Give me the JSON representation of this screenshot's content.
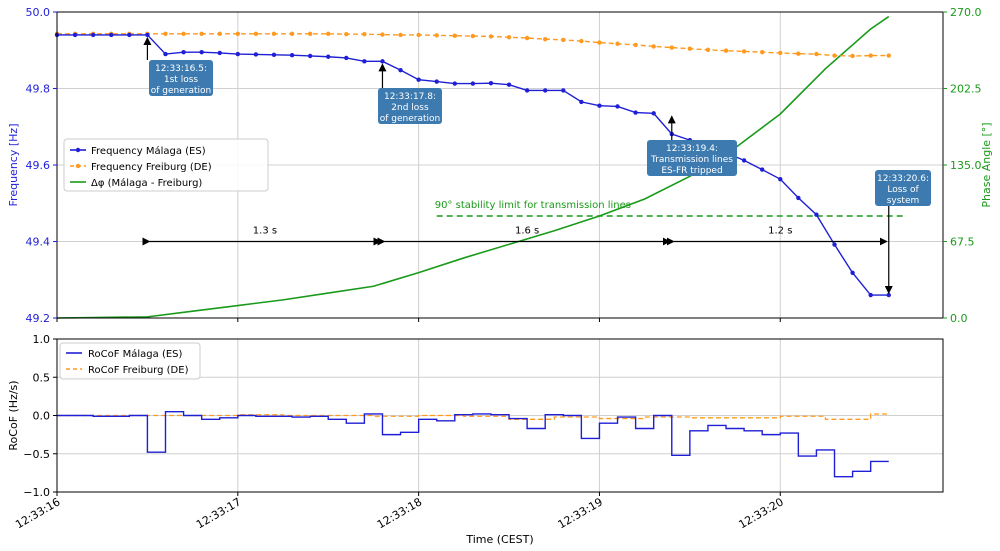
{
  "chart_data": [
    {
      "type": "line",
      "title": "",
      "xlabel": "",
      "ylabel": "Frequency [Hz]",
      "y2label": "Phase Angle [°]",
      "xlim": [
        0.0,
        4.9
      ],
      "ylim": [
        49.2,
        50.0
      ],
      "y2lim": [
        0.0,
        270.0
      ],
      "yticks": [
        "49.2",
        "49.4",
        "49.6",
        "49.8",
        "50.0"
      ],
      "y2ticks": [
        "0.0",
        "67.5",
        "135.0",
        "202.5",
        "270.0"
      ],
      "grid": true,
      "legend_position": "center-left",
      "colors": {
        "malaga": "#1f1fd6",
        "freiburg": "#ff9a1f",
        "phase": "#1a9a1a",
        "annotation_box": "#3c7ab0"
      },
      "series": [
        {
          "name": "Frequency Málaga (ES)",
          "axis": "left",
          "color": "#1f1fd6",
          "marker": "dot",
          "x": [
            0.0,
            0.1,
            0.2,
            0.3,
            0.4,
            0.5,
            0.6,
            0.7,
            0.8,
            0.9,
            1.0,
            1.1,
            1.2,
            1.3,
            1.4,
            1.5,
            1.6,
            1.7,
            1.8,
            1.9,
            2.0,
            2.1,
            2.2,
            2.3,
            2.4,
            2.5,
            2.6,
            2.7,
            2.8,
            2.9,
            3.0,
            3.1,
            3.2,
            3.3,
            3.4,
            3.5,
            3.6,
            3.7,
            3.8,
            3.9,
            4.0,
            4.1,
            4.2,
            4.3,
            4.4,
            4.5,
            4.6
          ],
          "y": [
            49.94,
            49.94,
            49.94,
            49.94,
            49.94,
            49.94,
            49.89,
            49.895,
            49.895,
            49.893,
            49.89,
            49.889,
            49.888,
            49.887,
            49.885,
            49.883,
            49.88,
            49.871,
            49.871,
            49.848,
            49.823,
            49.818,
            49.813,
            49.813,
            49.814,
            49.81,
            49.795,
            49.795,
            49.795,
            49.765,
            49.755,
            49.753,
            49.737,
            49.735,
            49.681,
            49.665,
            49.65,
            49.632,
            49.612,
            49.588,
            49.563,
            49.514,
            49.47,
            49.392,
            49.318,
            49.26,
            49.26
          ]
        },
        {
          "name": "Frequency Freiburg (DE)",
          "axis": "left",
          "color": "#ff9a1f",
          "marker": "dot",
          "dashed": true,
          "x": [
            0.0,
            0.1,
            0.2,
            0.3,
            0.4,
            0.5,
            0.6,
            0.7,
            0.8,
            0.9,
            1.0,
            1.1,
            1.2,
            1.3,
            1.4,
            1.5,
            1.6,
            1.7,
            1.8,
            1.9,
            2.0,
            2.1,
            2.2,
            2.3,
            2.4,
            2.5,
            2.6,
            2.7,
            2.8,
            2.9,
            3.0,
            3.1,
            3.2,
            3.3,
            3.4,
            3.5,
            3.6,
            3.7,
            3.8,
            3.9,
            4.0,
            4.1,
            4.2,
            4.3,
            4.4,
            4.5,
            4.6
          ],
          "y": [
            49.943,
            49.943,
            49.943,
            49.943,
            49.943,
            49.943,
            49.943,
            49.943,
            49.943,
            49.943,
            49.943,
            49.943,
            49.943,
            49.943,
            49.943,
            49.943,
            49.942,
            49.942,
            49.941,
            49.94,
            49.94,
            49.939,
            49.938,
            49.937,
            49.936,
            49.934,
            49.932,
            49.929,
            49.927,
            49.924,
            49.92,
            49.917,
            49.914,
            49.91,
            49.907,
            49.904,
            49.901,
            49.899,
            49.897,
            49.895,
            49.893,
            49.891,
            49.89,
            49.886,
            49.885,
            49.886,
            49.886
          ]
        },
        {
          "name": "Δφ (Málaga - Freiburg)",
          "axis": "right",
          "color": "#1a9a1a",
          "x": [
            0.0,
            0.25,
            0.5,
            0.75,
            1.0,
            1.25,
            1.5,
            1.75,
            2.0,
            2.25,
            2.5,
            2.75,
            3.0,
            3.25,
            3.5,
            3.75,
            4.0,
            4.25,
            4.5,
            4.6
          ],
          "y": [
            0,
            0.5,
            1,
            6,
            11,
            16,
            22,
            28,
            40,
            53,
            65,
            77,
            90,
            105,
            125,
            150,
            180,
            220,
            255,
            266
          ]
        }
      ],
      "annotations": [
        {
          "line1": "12:33:16.5:",
          "line2": "1st loss",
          "line3": "of generation",
          "x": 0.5,
          "y": 49.94
        },
        {
          "line1": "12:33:17.8:",
          "line2": "2nd loss",
          "line3": "of generation",
          "x": 1.8,
          "y": 49.871
        },
        {
          "line1": "12:33:19.4:",
          "line2": "Transmission lines",
          "line3": "ES-FR tripped",
          "x": 3.4,
          "y": 49.735
        },
        {
          "line1": "12:33:20.6:",
          "line2": "Loss of",
          "line3": "system",
          "x": 4.6,
          "y": 49.26
        }
      ],
      "intervals": [
        {
          "label": "1.3 s",
          "x_start": 0.5,
          "x_end": 1.8,
          "y": 49.4
        },
        {
          "label": "1.6 s",
          "x_start": 1.8,
          "x_end": 3.4,
          "y": 49.4
        },
        {
          "label": "1.2 s",
          "x_start": 3.4,
          "x_end": 4.6,
          "y": 49.4
        }
      ],
      "stability_limit": {
        "label": "90° stability limit for transmission lines",
        "value": 90,
        "x_start": 2.1,
        "x_end": 4.7
      }
    },
    {
      "type": "line",
      "title": "",
      "xlabel": "Time (CEST)",
      "ylabel": "RoCoF (Hz/s)",
      "xlim": [
        0.0,
        4.9
      ],
      "ylim": [
        -1.0,
        1.0
      ],
      "yticks": [
        "−1.0",
        "−0.5",
        "0.0",
        "0.5",
        "1.0"
      ],
      "xtick_values": [
        0.0,
        1.0,
        2.0,
        3.0,
        4.0
      ],
      "xticks": [
        "12:33:16",
        "12:33:17",
        "12:33:18",
        "12:33:19",
        "12:33:20"
      ],
      "grid": true,
      "legend_position": "top-left",
      "series": [
        {
          "name": "RoCoF Málaga (ES)",
          "color": "#1f1fd6",
          "step": true,
          "x": [
            0.0,
            0.1,
            0.2,
            0.3,
            0.4,
            0.5,
            0.6,
            0.7,
            0.8,
            0.9,
            1.0,
            1.1,
            1.2,
            1.3,
            1.4,
            1.5,
            1.6,
            1.7,
            1.8,
            1.9,
            2.0,
            2.1,
            2.2,
            2.3,
            2.4,
            2.5,
            2.6,
            2.7,
            2.8,
            2.9,
            3.0,
            3.1,
            3.2,
            3.3,
            3.4,
            3.5,
            3.6,
            3.7,
            3.8,
            3.9,
            4.0,
            4.1,
            4.2,
            4.3,
            4.4,
            4.5,
            4.6
          ],
          "y": [
            0.0,
            0.0,
            -0.01,
            -0.01,
            0.0,
            -0.48,
            0.05,
            0.0,
            -0.05,
            -0.03,
            0.0,
            -0.01,
            -0.01,
            -0.02,
            -0.01,
            -0.05,
            -0.1,
            0.02,
            -0.25,
            -0.22,
            -0.05,
            -0.07,
            0.01,
            0.02,
            0.01,
            -0.04,
            -0.17,
            0.01,
            0.0,
            -0.3,
            -0.1,
            -0.02,
            -0.17,
            0.0,
            -0.52,
            -0.2,
            -0.13,
            -0.17,
            -0.2,
            -0.25,
            -0.23,
            -0.53,
            -0.45,
            -0.8,
            -0.73,
            -0.6,
            -0.6
          ]
        },
        {
          "name": "RoCoF Freiburg (DE)",
          "color": "#ff9a1f",
          "dashed": true,
          "step": true,
          "x": [
            0.0,
            0.25,
            0.5,
            0.75,
            1.0,
            1.25,
            1.5,
            1.75,
            2.0,
            2.25,
            2.5,
            2.75,
            3.0,
            3.25,
            3.5,
            3.75,
            4.0,
            4.25,
            4.5,
            4.6
          ],
          "y": [
            0.0,
            0.0,
            0.0,
            0.0,
            0.01,
            0.0,
            0.0,
            -0.01,
            0.0,
            -0.01,
            -0.05,
            -0.02,
            -0.04,
            -0.02,
            -0.03,
            -0.03,
            -0.01,
            -0.05,
            0.02,
            0.02
          ]
        }
      ]
    }
  ]
}
